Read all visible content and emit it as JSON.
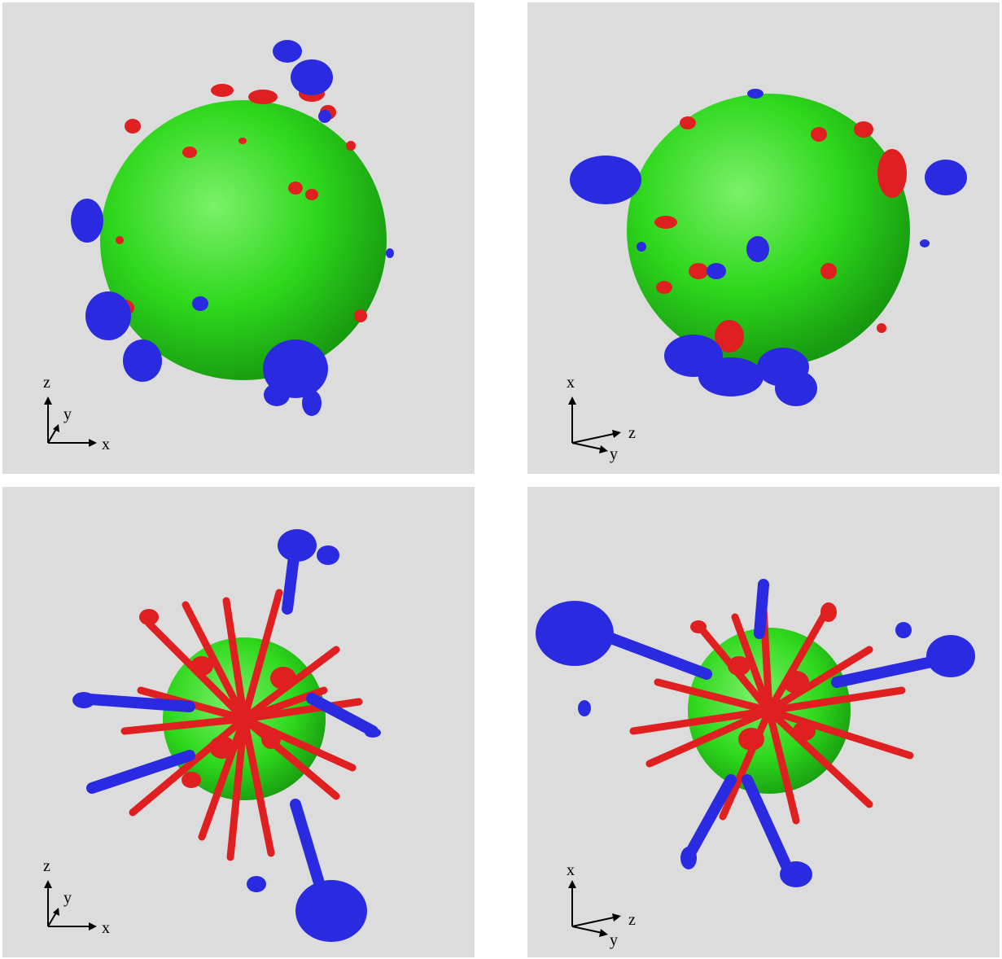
{
  "figure": {
    "panels": [
      {
        "axes": {
          "up": "z",
          "right": "x",
          "depth": "y"
        }
      },
      {
        "axes": {
          "up": "x",
          "right": "z",
          "depth": "y"
        }
      },
      {
        "axes": {
          "up": "z",
          "right": "x",
          "depth": "y"
        }
      },
      {
        "axes": {
          "up": "x",
          "right": "z",
          "depth": "y"
        }
      }
    ],
    "colors": {
      "background": "#dcdcdc",
      "core_surface": "#33dd22",
      "red_isosurface": "#e02020",
      "blue_isosurface": "#2a2ae0"
    }
  }
}
